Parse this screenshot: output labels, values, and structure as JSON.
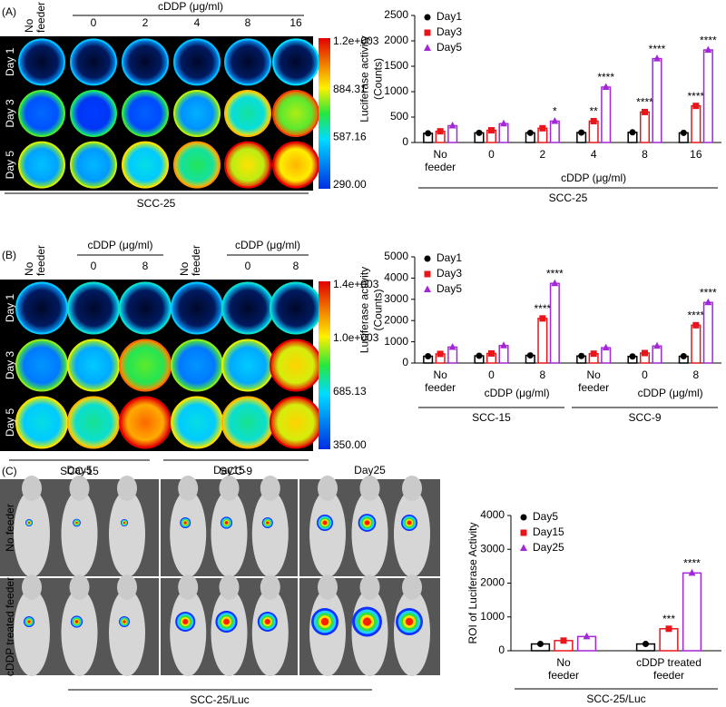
{
  "panels": {
    "A": {
      "label": "(A)",
      "header": "cDDP (μg/ml)",
      "columns": [
        "No feeder",
        "0",
        "2",
        "4",
        "8",
        "16"
      ],
      "rows": [
        "Day 1",
        "Day 3",
        "Day 5"
      ],
      "colorbar": [
        "1.2e+003",
        "884.31",
        "587.16",
        "290.00"
      ],
      "footer": "SCC-25"
    },
    "B": {
      "label": "(B)",
      "headers": [
        "cDDP (μg/ml)",
        "cDDP (μg/ml)"
      ],
      "columns": [
        "No feeder",
        "0",
        "8",
        "No feeder",
        "0",
        "8"
      ],
      "rows": [
        "Day 1",
        "Day 3",
        "Day 5"
      ],
      "colorbar": [
        "1.4e+003",
        "1.0e+003",
        "685.13",
        "350.00"
      ],
      "footers": [
        "SCC-15",
        "SCC-9"
      ]
    },
    "C": {
      "label": "(C)",
      "columns": [
        "Day5",
        "Day15",
        "Day25"
      ],
      "rows": [
        "No feeder",
        "cDDP treated feeder"
      ],
      "footer": "SCC-25/Luc"
    }
  },
  "chart_data": [
    {
      "type": "bar",
      "ylabel": [
        "Luciferase activity",
        "(Counts)"
      ],
      "categories": [
        "No feeder",
        "0",
        "2",
        "4",
        "8",
        "16"
      ],
      "x_groups": [
        {
          "label": "cDDP (μg/ml)",
          "start": 1,
          "end": 5
        }
      ],
      "x_outer_groups": [
        {
          "label": "SCC-25",
          "start": 0,
          "end": 5
        }
      ],
      "series": [
        {
          "name": "Day1",
          "color": "#000000",
          "marker": "circle",
          "values": [
            180,
            190,
            190,
            195,
            200,
            190
          ],
          "significance": [
            null,
            null,
            null,
            null,
            null,
            null
          ]
        },
        {
          "name": "Day3",
          "color": "#e8161b",
          "marker": "square",
          "values": [
            220,
            240,
            280,
            420,
            600,
            720
          ],
          "significance": [
            null,
            null,
            null,
            "**",
            "****",
            "****"
          ]
        },
        {
          "name": "Day5",
          "color": "#a326d9",
          "marker": "triangle",
          "values": [
            330,
            370,
            420,
            1090,
            1650,
            1820
          ],
          "significance": [
            null,
            null,
            "*",
            "****",
            "****",
            "****"
          ]
        }
      ],
      "ylim": [
        0,
        2500
      ],
      "yticks": [
        0,
        500,
        1000,
        1500,
        2000,
        2500
      ],
      "legend": "upper left"
    },
    {
      "type": "bar",
      "ylabel": [
        "Luciferase activity",
        "(Counts)"
      ],
      "categories": [
        "No feeder",
        "0",
        "8",
        "No feeder",
        "0",
        "8"
      ],
      "x_groups": [
        {
          "label": "cDDP (μg/ml)",
          "start": 1,
          "end": 2
        },
        {
          "label": "cDDP (μg/ml)",
          "start": 4,
          "end": 5
        }
      ],
      "x_outer_groups": [
        {
          "label": "SCC-15",
          "start": 0,
          "end": 2
        },
        {
          "label": "SCC-9",
          "start": 3,
          "end": 5
        }
      ],
      "series": [
        {
          "name": "Day1",
          "color": "#000000",
          "marker": "circle",
          "values": [
            320,
            340,
            360,
            330,
            310,
            320
          ],
          "significance": [
            null,
            null,
            null,
            null,
            null,
            null
          ]
        },
        {
          "name": "Day3",
          "color": "#e8161b",
          "marker": "square",
          "values": [
            430,
            450,
            2100,
            440,
            470,
            1780
          ],
          "significance": [
            null,
            null,
            "****",
            null,
            null,
            "****"
          ]
        },
        {
          "name": "Day5",
          "color": "#a326d9",
          "marker": "triangle",
          "values": [
            750,
            820,
            3750,
            720,
            800,
            2850
          ],
          "significance": [
            null,
            null,
            "****",
            null,
            null,
            "****"
          ]
        }
      ],
      "ylim": [
        0,
        5000
      ],
      "yticks": [
        0,
        1000,
        2000,
        3000,
        4000,
        5000
      ],
      "legend": "upper left"
    },
    {
      "type": "bar",
      "ylabel": [
        "ROI of Luciferase Activity"
      ],
      "categories": [
        "No feeder",
        "cDDP treated feeder"
      ],
      "x_groups": [],
      "x_outer_groups": [
        {
          "label": "SCC-25/Luc",
          "start": 0,
          "end": 1
        }
      ],
      "series": [
        {
          "name": "Day5",
          "color": "#000000",
          "marker": "circle",
          "values": [
            200,
            200
          ],
          "significance": [
            null,
            null
          ]
        },
        {
          "name": "Day15",
          "color": "#e8161b",
          "marker": "square",
          "values": [
            300,
            650
          ],
          "significance": [
            null,
            "***"
          ]
        },
        {
          "name": "Day25",
          "color": "#a326d9",
          "marker": "triangle",
          "values": [
            420,
            2300
          ],
          "significance": [
            null,
            "****"
          ]
        }
      ],
      "ylim": [
        0,
        4000
      ],
      "yticks": [
        0,
        1000,
        2000,
        3000,
        4000
      ],
      "legend": "upper left"
    }
  ]
}
